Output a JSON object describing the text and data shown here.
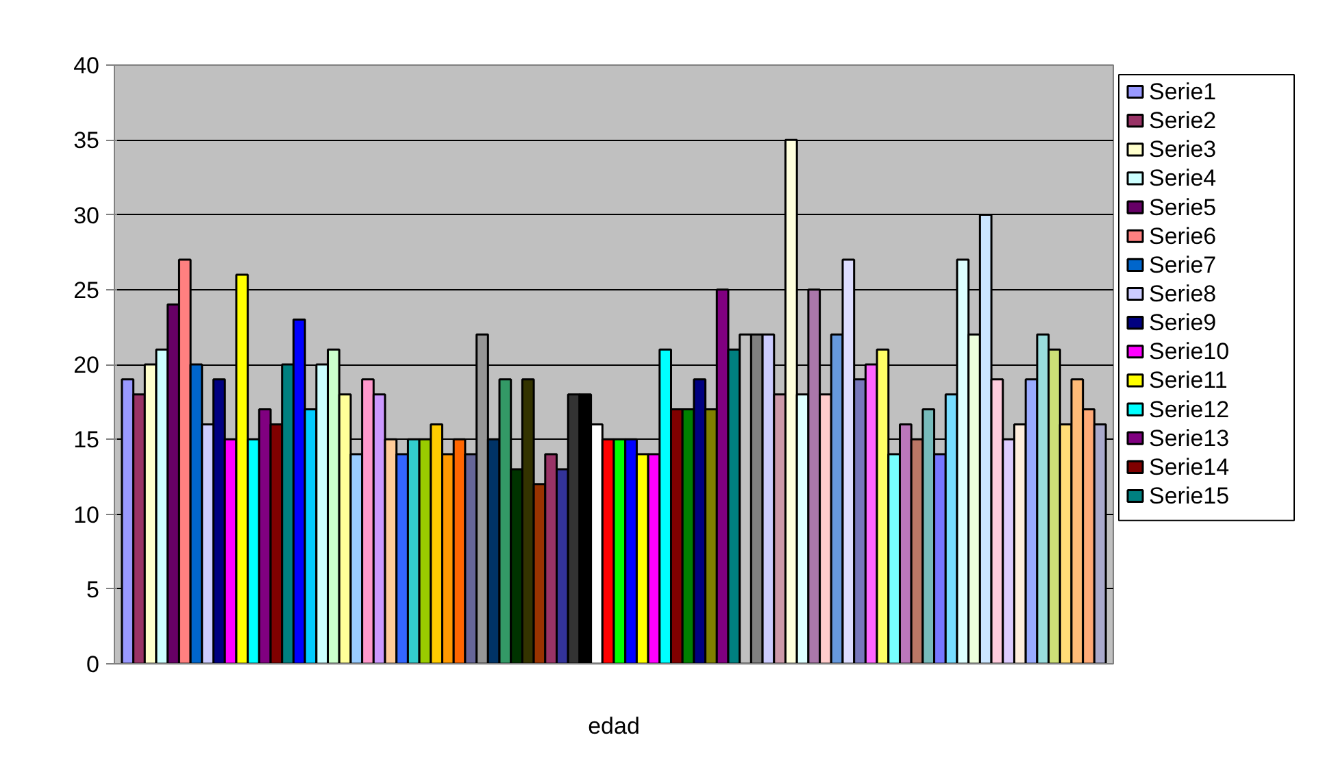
{
  "chart_data": {
    "type": "bar",
    "categories": [
      "edad"
    ],
    "ylim": [
      0,
      40
    ],
    "yticks": [
      0,
      5,
      10,
      15,
      20,
      25,
      30,
      35,
      40
    ],
    "grid": "y",
    "legend": "right",
    "series": [
      {
        "name": "Serie1",
        "color": "#9999ff",
        "values": [
          19
        ]
      },
      {
        "name": "Serie2",
        "color": "#993366",
        "values": [
          18
        ]
      },
      {
        "name": "Serie3",
        "color": "#ffffcc",
        "values": [
          20
        ]
      },
      {
        "name": "Serie4",
        "color": "#ccffff",
        "values": [
          21
        ]
      },
      {
        "name": "Serie5",
        "color": "#660066",
        "values": [
          24
        ]
      },
      {
        "name": "Serie6",
        "color": "#ff8080",
        "values": [
          27
        ]
      },
      {
        "name": "Serie7",
        "color": "#0066cc",
        "values": [
          20
        ]
      },
      {
        "name": "Serie8",
        "color": "#ccccff",
        "values": [
          16
        ]
      },
      {
        "name": "Serie9",
        "color": "#000080",
        "values": [
          19
        ]
      },
      {
        "name": "Serie10",
        "color": "#ff00ff",
        "values": [
          15
        ]
      },
      {
        "name": "Serie11",
        "color": "#ffff00",
        "values": [
          26
        ]
      },
      {
        "name": "Serie12",
        "color": "#00ffff",
        "values": [
          15
        ]
      },
      {
        "name": "Serie13",
        "color": "#800080",
        "values": [
          17
        ]
      },
      {
        "name": "Serie14",
        "color": "#800000",
        "values": [
          16
        ]
      },
      {
        "name": "Serie15",
        "color": "#008080",
        "values": [
          20
        ]
      },
      {
        "color": "#0000ff",
        "values": [
          23
        ]
      },
      {
        "color": "#00ccff",
        "values": [
          17
        ]
      },
      {
        "color": "#ccffff",
        "values": [
          20
        ]
      },
      {
        "color": "#ccffcc",
        "values": [
          21
        ]
      },
      {
        "color": "#ffff99",
        "values": [
          18
        ]
      },
      {
        "color": "#99ccff",
        "values": [
          14
        ]
      },
      {
        "color": "#ff99cc",
        "values": [
          19
        ]
      },
      {
        "color": "#cc99ff",
        "values": [
          18
        ]
      },
      {
        "color": "#ffcc99",
        "values": [
          15
        ]
      },
      {
        "color": "#3366ff",
        "values": [
          14
        ]
      },
      {
        "color": "#33cccc",
        "values": [
          15
        ]
      },
      {
        "color": "#99cc00",
        "values": [
          15
        ]
      },
      {
        "color": "#ffcc00",
        "values": [
          16
        ]
      },
      {
        "color": "#ff9900",
        "values": [
          14
        ]
      },
      {
        "color": "#ff6600",
        "values": [
          15
        ]
      },
      {
        "color": "#666699",
        "values": [
          14
        ]
      },
      {
        "color": "#969696",
        "values": [
          22
        ]
      },
      {
        "color": "#003366",
        "values": [
          15
        ]
      },
      {
        "color": "#339966",
        "values": [
          19
        ]
      },
      {
        "color": "#003300",
        "values": [
          13
        ]
      },
      {
        "color": "#333300",
        "values": [
          19
        ]
      },
      {
        "color": "#993300",
        "values": [
          12
        ]
      },
      {
        "color": "#993366",
        "values": [
          14
        ]
      },
      {
        "color": "#333399",
        "values": [
          13
        ]
      },
      {
        "color": "#333333",
        "values": [
          18
        ]
      },
      {
        "color": "#000000",
        "values": [
          18
        ]
      },
      {
        "color": "#ffffff",
        "values": [
          16
        ]
      },
      {
        "color": "#ff0000",
        "values": [
          15
        ]
      },
      {
        "color": "#00ff00",
        "values": [
          15
        ]
      },
      {
        "color": "#0000ff",
        "values": [
          15
        ]
      },
      {
        "color": "#ffff00",
        "values": [
          14
        ]
      },
      {
        "color": "#ff00ff",
        "values": [
          14
        ]
      },
      {
        "color": "#00ffff",
        "values": [
          21
        ]
      },
      {
        "color": "#800000",
        "values": [
          17
        ]
      },
      {
        "color": "#008000",
        "values": [
          17
        ]
      },
      {
        "color": "#000080",
        "values": [
          19
        ]
      },
      {
        "color": "#808000",
        "values": [
          17
        ]
      },
      {
        "color": "#800080",
        "values": [
          25
        ]
      },
      {
        "color": "#008080",
        "values": [
          21
        ]
      },
      {
        "color": "#c0c0c0",
        "values": [
          22
        ]
      },
      {
        "color": "#808080",
        "values": [
          22
        ]
      },
      {
        "color": "#ccccff",
        "values": [
          22
        ]
      },
      {
        "color": "#cc99aa",
        "values": [
          18
        ]
      },
      {
        "color": "#ffffdd",
        "values": [
          35
        ]
      },
      {
        "color": "#ddffff",
        "values": [
          18
        ]
      },
      {
        "color": "#aa77aa",
        "values": [
          25
        ]
      },
      {
        "color": "#ffcccc",
        "values": [
          18
        ]
      },
      {
        "color": "#6699dd",
        "values": [
          22
        ]
      },
      {
        "color": "#ddddff",
        "values": [
          27
        ]
      },
      {
        "color": "#7777bb",
        "values": [
          19
        ]
      },
      {
        "color": "#ff66ff",
        "values": [
          20
        ]
      },
      {
        "color": "#ffff66",
        "values": [
          21
        ]
      },
      {
        "color": "#77ffff",
        "values": [
          14
        ]
      },
      {
        "color": "#bb77bb",
        "values": [
          16
        ]
      },
      {
        "color": "#bb7766",
        "values": [
          15
        ]
      },
      {
        "color": "#77bbbb",
        "values": [
          17
        ]
      },
      {
        "color": "#7777ff",
        "values": [
          14
        ]
      },
      {
        "color": "#77ddff",
        "values": [
          18
        ]
      },
      {
        "color": "#ddffff",
        "values": [
          27
        ]
      },
      {
        "color": "#eeffdd",
        "values": [
          22
        ]
      },
      {
        "color": "#cce6ff",
        "values": [
          30
        ]
      },
      {
        "color": "#ffccdd",
        "values": [
          19
        ]
      },
      {
        "color": "#ddccff",
        "values": [
          15
        ]
      },
      {
        "color": "#ffeedd",
        "values": [
          16
        ]
      },
      {
        "color": "#99aaff",
        "values": [
          19
        ]
      },
      {
        "color": "#99dddd",
        "values": [
          22
        ]
      },
      {
        "color": "#cce077",
        "values": [
          21
        ]
      },
      {
        "color": "#ffdd77",
        "values": [
          16
        ]
      },
      {
        "color": "#ffbb77",
        "values": [
          19
        ]
      },
      {
        "color": "#ffaa77",
        "values": [
          17
        ]
      },
      {
        "color": "#aaaacc",
        "values": [
          16
        ]
      }
    ]
  }
}
